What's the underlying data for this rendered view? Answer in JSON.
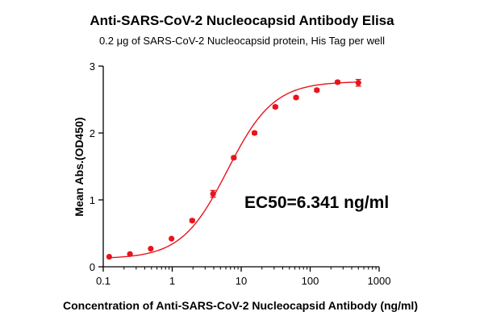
{
  "chart_data": {
    "type": "scatter",
    "title": "Anti-SARS-CoV-2 Nucleocapsid Antibody Elisa",
    "subtitle": "0.2 μg of SARS-CoV-2 Nucleocapsid protein, His Tag per well",
    "xlabel": "Concentration of Anti-SARS-CoV-2 Nucleocapsid Antibody (ng/ml)",
    "ylabel": "Mean Abs.(OD450)",
    "x_scale": "log",
    "xlim": [
      0.1,
      1000
    ],
    "ylim": [
      0,
      3
    ],
    "x_ticks": [
      "0.1",
      "1",
      "10",
      "100",
      "1000"
    ],
    "y_ticks": [
      "0",
      "1",
      "2",
      "3"
    ],
    "grid": false,
    "annotation": "EC50=6.341 ng/ml",
    "color": "#e8141c",
    "series": [
      {
        "x": [
          0.122,
          0.244,
          0.488,
          0.977,
          1.95,
          3.91,
          7.81,
          15.6,
          31.25,
          62.5,
          125,
          250,
          500
        ],
        "y": [
          0.15,
          0.19,
          0.27,
          0.42,
          0.69,
          1.09,
          1.63,
          2.0,
          2.39,
          2.53,
          2.64,
          2.76,
          2.75
        ],
        "err": [
          0.01,
          0.01,
          0.01,
          0.01,
          0.02,
          0.05,
          0.02,
          0.02,
          0.02,
          0.02,
          0.02,
          0.02,
          0.05
        ]
      }
    ],
    "fit": {
      "bottom": 0.12,
      "top": 2.77,
      "ec50": 6.341,
      "hill": 1.3
    }
  }
}
